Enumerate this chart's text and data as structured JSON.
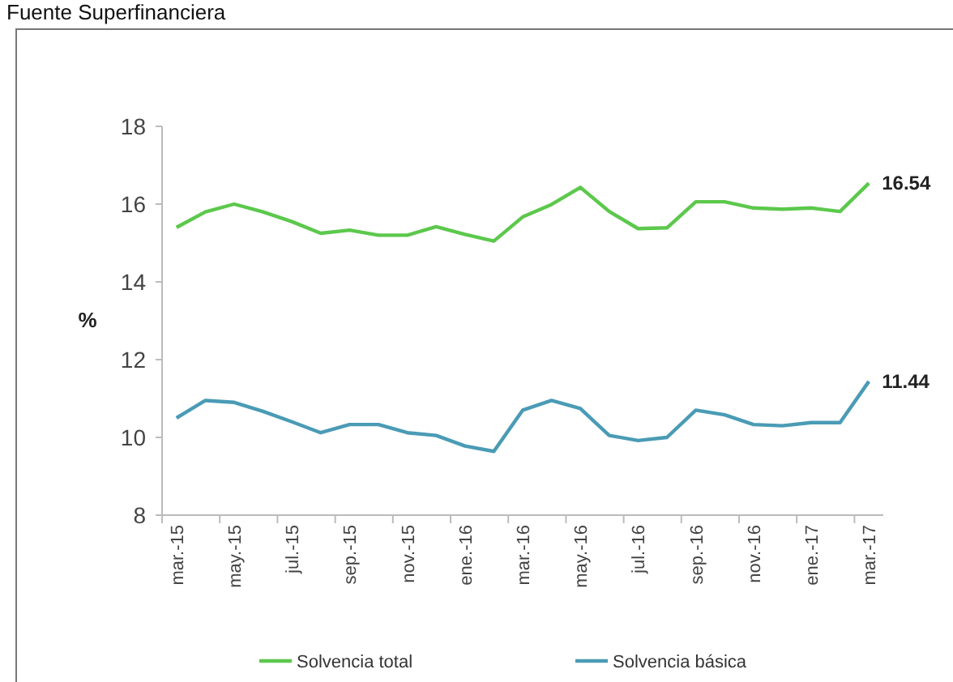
{
  "chart_data": {
    "type": "line",
    "ylabel": "%",
    "annotations": [
      "Fuente Superfinanciera"
    ],
    "categories": [
      "mar.-15",
      null,
      "may.-15",
      null,
      "jul.-15",
      null,
      "sep.-15",
      null,
      "nov.-15",
      null,
      "ene.-16",
      null,
      "mar.-16",
      null,
      "may.-16",
      null,
      "jul.-16",
      null,
      "sep.-16",
      null,
      "nov.-16",
      null,
      "ene.-17",
      null,
      "mar.-17"
    ],
    "series": [
      {
        "name": "Solvencia total",
        "color": "#5cc84c",
        "values": [
          15.4,
          15.8,
          16.0,
          15.8,
          15.55,
          15.25,
          15.33,
          15.2,
          15.2,
          15.42,
          15.22,
          15.05,
          15.67,
          15.99,
          16.43,
          15.81,
          15.37,
          15.39,
          16.06,
          16.06,
          15.9,
          15.87,
          15.9,
          15.81,
          16.54
        ],
        "value_labels": [
          null,
          null,
          null,
          null,
          null,
          null,
          null,
          null,
          null,
          null,
          null,
          null,
          null,
          null,
          null,
          null,
          null,
          null,
          null,
          null,
          null,
          null,
          null,
          null,
          "16.54"
        ]
      },
      {
        "name": "Solvencia básica",
        "color": "#4a9bb5",
        "values": [
          10.5,
          10.95,
          10.9,
          10.67,
          10.4,
          10.12,
          10.33,
          10.33,
          10.12,
          10.05,
          9.78,
          9.64,
          10.7,
          10.95,
          10.74,
          10.05,
          9.92,
          10.0,
          10.7,
          10.58,
          10.33,
          10.3,
          10.38,
          10.38,
          11.44
        ],
        "value_labels": [
          null,
          null,
          null,
          null,
          null,
          null,
          null,
          null,
          null,
          null,
          null,
          null,
          null,
          null,
          null,
          null,
          null,
          null,
          null,
          null,
          null,
          null,
          null,
          null,
          "11.44"
        ]
      }
    ],
    "ylim": [
      8,
      18
    ],
    "yticks": [
      8,
      10,
      12,
      14,
      16,
      18
    ],
    "grid": false,
    "legend": "bottom",
    "marker": "none",
    "line_style": "solid"
  }
}
